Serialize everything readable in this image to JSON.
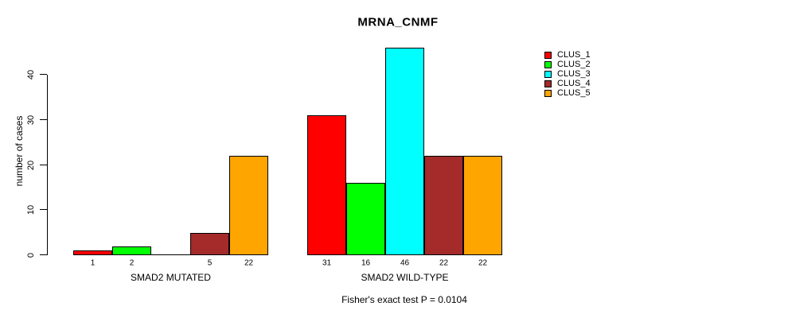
{
  "chart_data": {
    "type": "bar",
    "title": "MRNA_CNMF",
    "ylabel": "number of cases",
    "yticks": [
      0,
      10,
      20,
      30,
      40
    ],
    "ylim": [
      0,
      46
    ],
    "grid": false,
    "legend_position": "right",
    "categories": [
      "SMAD2 MUTATED",
      "SMAD2 WILD-TYPE"
    ],
    "series": [
      {
        "name": "CLUS_1",
        "color": "#ff0000",
        "values": [
          1,
          31
        ]
      },
      {
        "name": "CLUS_2",
        "color": "#00ff00",
        "values": [
          2,
          16
        ]
      },
      {
        "name": "CLUS_3",
        "color": "#00ffff",
        "values": [
          0,
          46
        ]
      },
      {
        "name": "CLUS_4",
        "color": "#a52a2a",
        "values": [
          5,
          22
        ]
      },
      {
        "name": "CLUS_5",
        "color": "#ffa500",
        "values": [
          22,
          22
        ]
      }
    ],
    "bar_value_labels_shown": true,
    "zero_bars_unlabeled": true,
    "annotation": "Fisher's exact test P = 0.0104",
    "background_color": "#ffffff",
    "text_color": "#000000"
  }
}
